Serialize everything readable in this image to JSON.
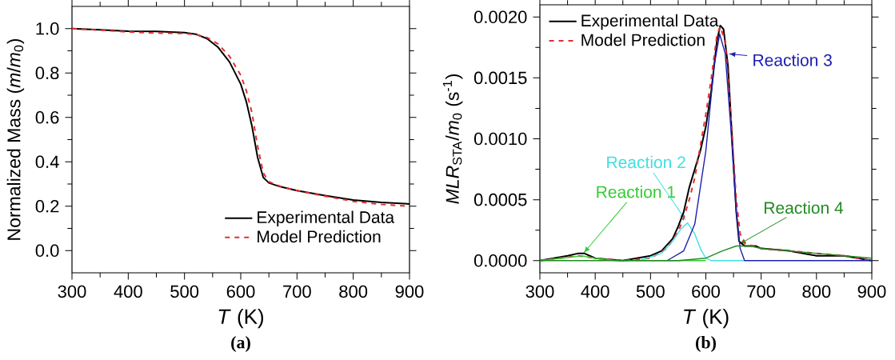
{
  "chart_data": [
    {
      "type": "line",
      "xlabel": "*T* (K)",
      "ylabel": "Normalized Mass (*m*/*m*$_{0}$)",
      "xlim": [
        300,
        900
      ],
      "ylim": [
        -0.1,
        1.1
      ],
      "xticks": [
        300,
        400,
        500,
        600,
        700,
        800,
        900
      ],
      "yticks": [
        {
          "value": 0,
          "label": "0.0"
        },
        {
          "value": 0.2,
          "label": "0.2"
        },
        {
          "value": 0.4,
          "label": "0.4"
        },
        {
          "value": 0.6,
          "label": "0.6"
        },
        {
          "value": 0.8,
          "label": "0.8"
        },
        {
          "value": 1,
          "label": "1.0"
        }
      ],
      "legend": "bottom right",
      "grid": false,
      "annotations": [
        "(a)"
      ],
      "series": [
        {
          "name": "Experimental Data",
          "color": "#000000",
          "line_style": "solid",
          "x": [
            300,
            350,
            400,
            450,
            500,
            520,
            540,
            560,
            580,
            600,
            610,
            620,
            630,
            640,
            650,
            670,
            700,
            750,
            800,
            850,
            900
          ],
          "values": [
            1.0,
            0.995,
            0.988,
            0.987,
            0.982,
            0.975,
            0.955,
            0.915,
            0.85,
            0.75,
            0.67,
            0.56,
            0.42,
            0.33,
            0.305,
            0.288,
            0.27,
            0.248,
            0.228,
            0.217,
            0.21
          ]
        },
        {
          "name": "Model Prediction",
          "color": "#e03030",
          "line_style": "dashed",
          "x": [
            300,
            350,
            400,
            450,
            500,
            520,
            540,
            560,
            580,
            600,
            610,
            620,
            630,
            640,
            650,
            670,
            700,
            750,
            800,
            850,
            900
          ],
          "values": [
            1.0,
            0.993,
            0.985,
            0.98,
            0.978,
            0.973,
            0.96,
            0.93,
            0.875,
            0.79,
            0.72,
            0.62,
            0.47,
            0.35,
            0.31,
            0.29,
            0.27,
            0.245,
            0.222,
            0.208,
            0.2
          ]
        }
      ]
    },
    {
      "type": "line",
      "xlabel": "*T* (K)",
      "ylabel": "*MLR*$_{STA}$/*m*$_{0}$ (s$^{-1}$)",
      "xlim": [
        300,
        900
      ],
      "ylim": [
        -0.0001,
        0.0021
      ],
      "xticks": [
        300,
        400,
        500,
        600,
        700,
        800,
        900
      ],
      "yticks": [
        {
          "value": 0,
          "label": "0.0000"
        },
        {
          "value": 0.0005,
          "label": "0.0005"
        },
        {
          "value": 0.001,
          "label": "0.0010"
        },
        {
          "value": 0.0015,
          "label": "0.0015"
        },
        {
          "value": 0.002,
          "label": "0.0020"
        }
      ],
      "legend": "top left",
      "grid": false,
      "annotations": [
        "(b)"
      ],
      "series": [
        {
          "name": "Experimental Data",
          "color": "#000000",
          "line_style": "solid",
          "x": [
            300,
            350,
            370,
            380,
            400,
            450,
            500,
            520,
            540,
            550,
            560,
            570,
            580,
            590,
            600,
            610,
            620,
            626,
            632,
            640,
            650,
            655,
            660,
            670,
            690,
            700,
            750,
            800,
            850,
            900
          ],
          "values": [
            0,
            4e-05,
            6e-05,
            6e-05,
            2e-05,
            0.0,
            4e-05,
            8e-05,
            0.00018,
            0.00028,
            0.0004,
            0.0006,
            0.00075,
            0.0009,
            0.0011,
            0.0014,
            0.0018,
            0.00193,
            0.0019,
            0.0016,
            0.0008,
            0.0004,
            0.00016,
            0.00012,
            0.00012,
            0.0001,
            8e-05,
            4e-05,
            4e-05,
            0
          ]
        },
        {
          "name": "Model Prediction",
          "color": "#e03030",
          "line_style": "dashed",
          "x": [
            300,
            370,
            400,
            450,
            500,
            530,
            550,
            560,
            570,
            580,
            600,
            610,
            620,
            626,
            635,
            645,
            655,
            662,
            670,
            700,
            750,
            800,
            850,
            900
          ],
          "values": [
            0,
            4e-05,
            2e-05,
            0,
            2e-05,
            0.0001,
            0.00024,
            0.00035,
            0.0005,
            0.00068,
            0.0012,
            0.0015,
            0.00185,
            0.00192,
            0.0018,
            0.0012,
            0.0005,
            0.00022,
            0.00014,
            0.0001,
            8e-05,
            6e-05,
            4e-05,
            0
          ]
        },
        {
          "name": "Reaction 1",
          "color": "#33cc33",
          "line_style": "solid",
          "x": [
            300,
            340,
            375,
            400,
            440,
            500,
            600
          ],
          "values": [
            0,
            2e-05,
            4e-05,
            2e-05,
            0,
            0,
            0
          ]
        },
        {
          "name": "Reaction 2",
          "color": "#40e0e0",
          "line_style": "solid",
          "x": [
            480,
            520,
            540,
            555,
            567,
            580,
            590,
            600,
            610,
            670
          ],
          "values": [
            0,
            6e-05,
            0.00016,
            0.00026,
            0.00031,
            0.00022,
            0.0001,
            2e-05,
            0,
            0
          ]
        },
        {
          "name": "Reaction 3",
          "color": "#2020b0",
          "line_style": "solid",
          "x": [
            530,
            560,
            580,
            600,
            615,
            625,
            635,
            645,
            655,
            662,
            670,
            680,
            900
          ],
          "values": [
            0,
            8e-05,
            0.0003,
            0.0009,
            0.0016,
            0.00186,
            0.0017,
            0.0011,
            0.0004,
            0.0001,
            0,
            0,
            0
          ]
        },
        {
          "name": "Reaction 4",
          "color": "#228b22",
          "line_style": "solid",
          "x": [
            300,
            550,
            600,
            630,
            655,
            680,
            700,
            750,
            800,
            850,
            900
          ],
          "values": [
            0,
            0,
            2e-05,
            8e-05,
            0.00012,
            0.00012,
            0.0001,
            8e-05,
            6e-05,
            4e-05,
            2e-05
          ]
        }
      ]
    }
  ]
}
